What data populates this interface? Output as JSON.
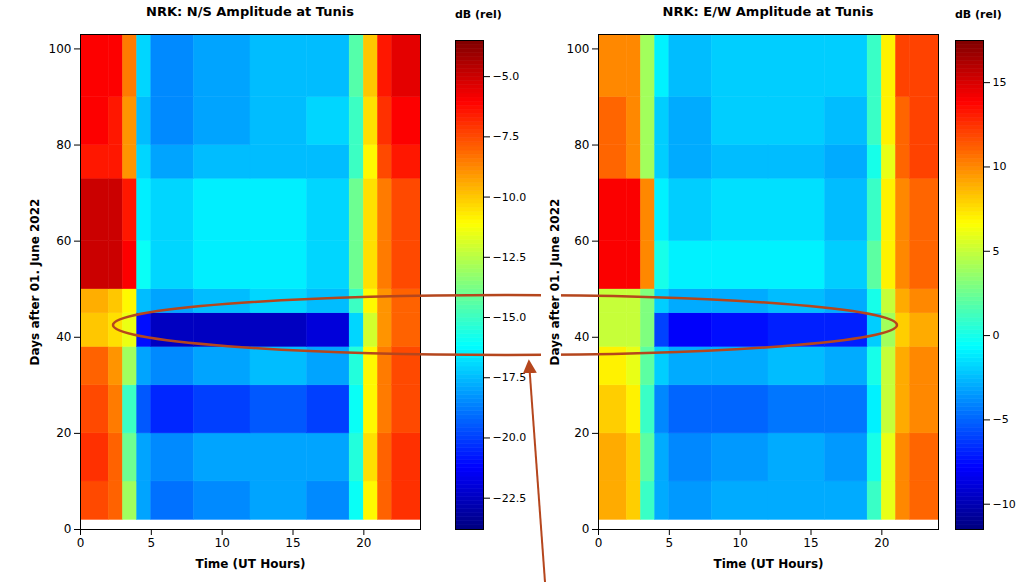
{
  "chart_data": [
    {
      "type": "heatmap",
      "title": "NRK: N/S Amplitude at Tunis",
      "x_label": "Time (UT Hours)",
      "y_label": "Days after 01. June 2022",
      "xlim": [
        0,
        24
      ],
      "xticks": [
        0,
        5,
        10,
        15,
        20
      ],
      "ylim": [
        0,
        103
      ],
      "yticks": [
        0,
        20,
        40,
        60,
        80,
        100
      ],
      "x_bins": [
        0,
        2,
        3,
        4,
        5,
        8,
        12,
        16,
        19,
        20,
        21,
        22,
        24
      ],
      "y_bins": [
        2,
        10,
        20,
        30,
        38,
        45,
        50,
        60,
        73,
        80,
        90,
        103
      ],
      "cells": [
        [
          -7.5,
          -8,
          -13,
          -18,
          -19,
          -18.5,
          -18,
          -18.5,
          -16,
          -11,
          -8,
          -7
        ],
        [
          -7,
          -8,
          -14,
          -18,
          -18.5,
          -18,
          -18,
          -18,
          -15.5,
          -10.5,
          -8,
          -7
        ],
        [
          -7.5,
          -8.5,
          -15,
          -19.5,
          -20.5,
          -20,
          -19.5,
          -20,
          -16,
          -11,
          -8.5,
          -7.5
        ],
        [
          -8,
          -9,
          -13,
          -18,
          -18.5,
          -18,
          -17.5,
          -18,
          -15.5,
          -11,
          -8.5,
          -7.5
        ],
        [
          -10,
          -10.5,
          -11.5,
          -21,
          -22.5,
          -22.5,
          -22.5,
          -22,
          -17,
          -12,
          -9,
          -8
        ],
        [
          -9.5,
          -10,
          -11,
          -17.5,
          -18,
          -17.5,
          -17,
          -17.5,
          -15,
          -11,
          -9,
          -8
        ],
        [
          -5,
          -5,
          -6,
          -16,
          -17,
          -16.5,
          -16.5,
          -17,
          -14,
          -10.5,
          -8.5,
          -7.5
        ],
        [
          -5,
          -5,
          -6.5,
          -16.5,
          -17,
          -16.5,
          -16.5,
          -17,
          -14,
          -10.5,
          -8.5,
          -7.5
        ],
        [
          -6.5,
          -6.5,
          -9,
          -17,
          -18,
          -17.5,
          -17.5,
          -17.5,
          -15,
          -11,
          -7.5,
          -6.5
        ],
        [
          -6,
          -6.5,
          -9,
          -17.5,
          -18.5,
          -18,
          -17.5,
          -17,
          -15,
          -10.5,
          -7,
          -6
        ],
        [
          -6,
          -6,
          -8.5,
          -17,
          -18.5,
          -18,
          -17.5,
          -17.5,
          -14.5,
          -10,
          -6.5,
          -5.5
        ]
      ],
      "colorbar_label": "dB (rel)",
      "colorbar_range": [
        -23.8,
        -3.5
      ],
      "colorbar_ticks": [
        {
          "value": -5,
          "label": "−5.0"
        },
        {
          "value": -7.5,
          "label": "−7.5"
        },
        {
          "value": -10,
          "label": "−10.0"
        },
        {
          "value": -12.5,
          "label": "−12.5"
        },
        {
          "value": -15,
          "label": "−15.0"
        },
        {
          "value": -17.5,
          "label": "−17.5"
        },
        {
          "value": -20,
          "label": "−20.0"
        },
        {
          "value": -22.5,
          "label": "−22.5"
        }
      ]
    },
    {
      "type": "heatmap",
      "title": "NRK: E/W Amplitude at Tunis",
      "x_label": "Time (UT Hours)",
      "y_label": "Days after 01. June 2022",
      "xlim": [
        0,
        24
      ],
      "xticks": [
        0,
        5,
        10,
        15,
        20
      ],
      "ylim": [
        0,
        103
      ],
      "yticks": [
        0,
        20,
        40,
        60,
        80,
        100
      ],
      "x_bins": [
        0,
        2,
        3,
        4,
        5,
        8,
        12,
        16,
        19,
        20,
        21,
        22,
        24
      ],
      "y_bins": [
        2,
        10,
        20,
        30,
        38,
        45,
        50,
        60,
        73,
        80,
        90,
        103
      ],
      "cells": [
        [
          9,
          8,
          1,
          -3,
          -3.5,
          -3,
          -3,
          -3,
          1,
          6,
          10,
          11
        ],
        [
          9,
          8,
          2,
          -3,
          -4,
          -3.5,
          -3,
          -3.5,
          0,
          6,
          10,
          11
        ],
        [
          8,
          7,
          1,
          -4,
          -5,
          -5,
          -4.5,
          -4.5,
          -1,
          5,
          9,
          10
        ],
        [
          7,
          6,
          2,
          -2,
          -3,
          -3,
          -2.5,
          -3,
          0,
          5,
          9,
          10
        ],
        [
          5,
          5,
          3,
          -6,
          -8,
          -7.5,
          -7,
          -7,
          -2,
          4,
          8,
          9
        ],
        [
          5,
          5,
          3,
          -2,
          -3,
          -3,
          -2.5,
          -3,
          0,
          5,
          9,
          10
        ],
        [
          14,
          14,
          10,
          0,
          -1,
          -1,
          -1,
          -2,
          2,
          7,
          10,
          11
        ],
        [
          14,
          14,
          10,
          -1,
          -2,
          -1.5,
          -1.5,
          -2.5,
          1,
          7,
          10,
          11
        ],
        [
          11,
          10,
          4,
          -2,
          -3,
          -2.5,
          -2.5,
          -3,
          0,
          6,
          11,
          12
        ],
        [
          11,
          10,
          4,
          -2,
          -3,
          -2,
          -2,
          -2.5,
          1,
          7,
          11,
          12
        ],
        [
          10,
          10,
          4,
          -1,
          -2.5,
          -2,
          -2,
          -2,
          1,
          7,
          12,
          12
        ]
      ],
      "colorbar_label": "dB (rel)",
      "colorbar_range": [
        -11.5,
        17.5
      ],
      "colorbar_ticks": [
        {
          "value": -10,
          "label": "−10"
        },
        {
          "value": -5,
          "label": "−5"
        },
        {
          "value": 0,
          "label": "0"
        },
        {
          "value": 5,
          "label": "5"
        },
        {
          "value": 10,
          "label": "10"
        },
        {
          "value": 15,
          "label": "15"
        }
      ]
    }
  ]
}
